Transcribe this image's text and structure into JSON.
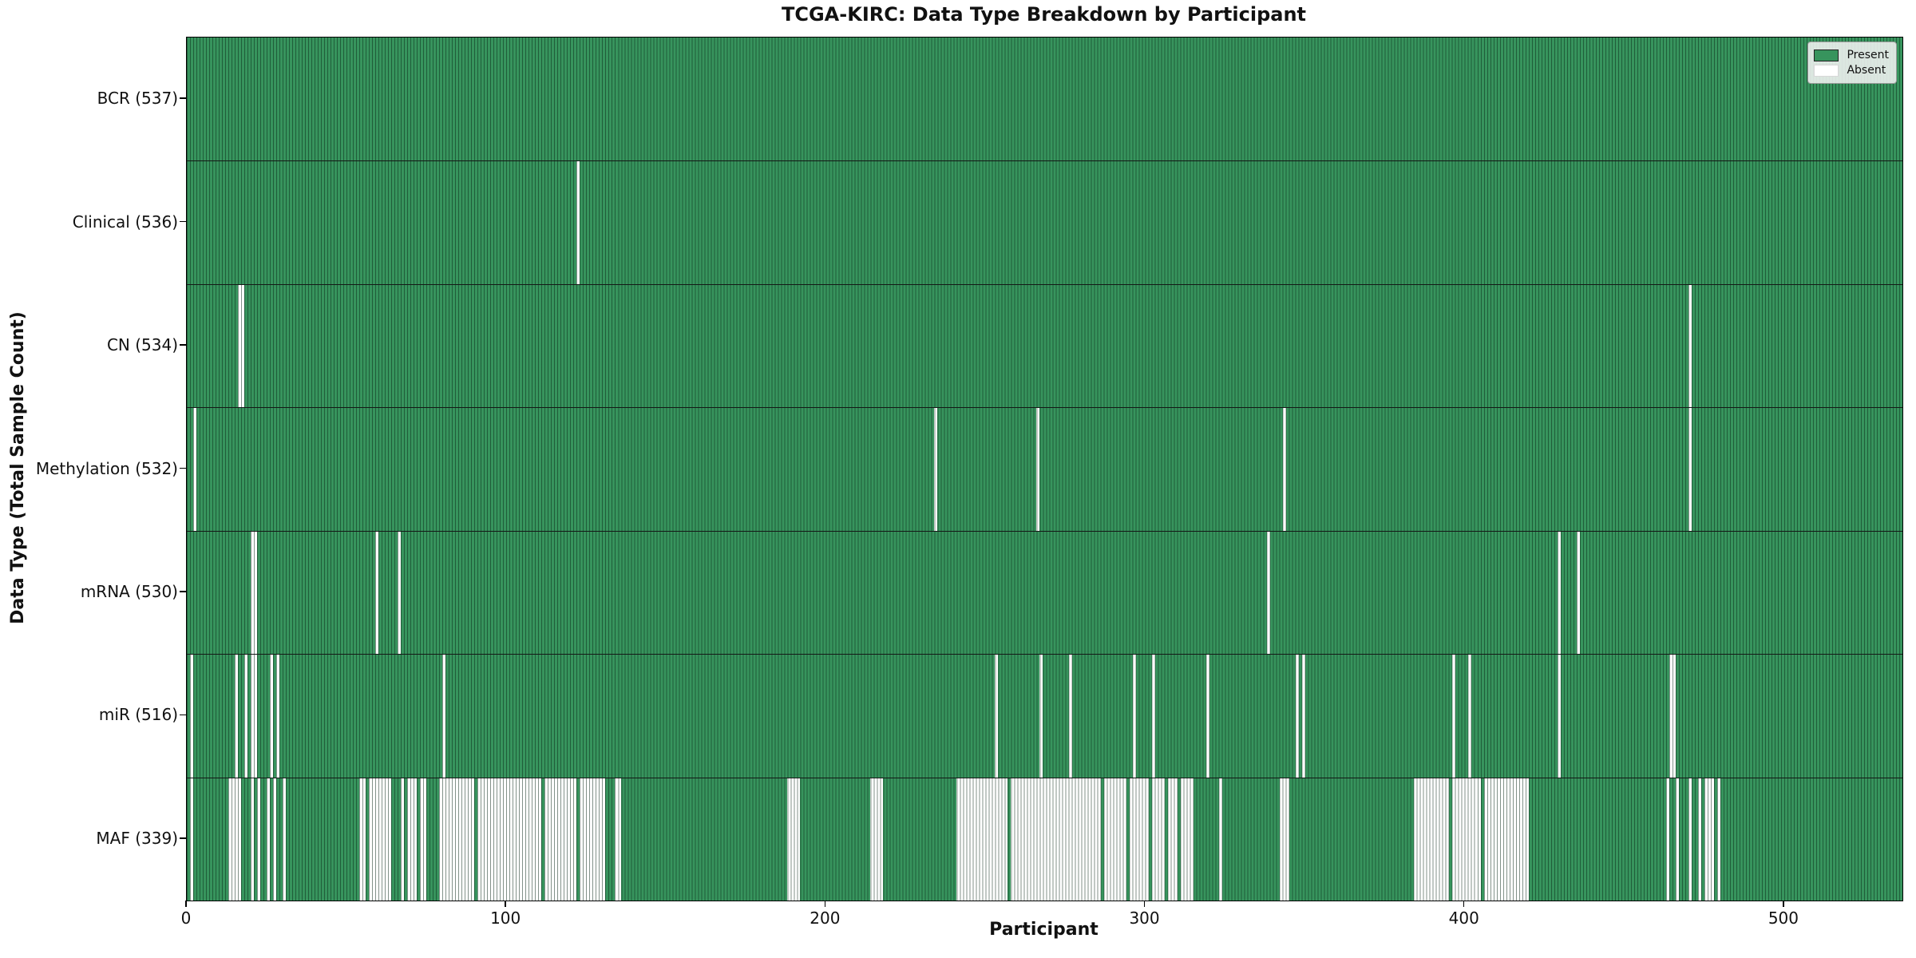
{
  "chart_data": {
    "type": "heatmap",
    "title": "TCGA-KIRC: Data Type Breakdown by Participant",
    "xlabel": "Participant",
    "ylabel": "Data Type (Total Sample Count)",
    "n_participants": 537,
    "x_ticks": [
      0,
      100,
      200,
      300,
      400,
      500
    ],
    "xlim": [
      0,
      537
    ],
    "grid": false,
    "legend_position": "upper right",
    "legend": [
      {
        "label": "Present",
        "color": "#37945d"
      },
      {
        "label": "Absent",
        "color": "#ffffff"
      }
    ],
    "colors": {
      "present": "#37945d",
      "absent": "#ffffff",
      "cell_edge": "rgba(8,38,22,0.5)",
      "row_separator": "#161616"
    },
    "rows": [
      {
        "label": "BCR (537)",
        "data_type": "BCR",
        "present_count": 537,
        "absent_count": 0,
        "absent_runs": []
      },
      {
        "label": "Clinical (536)",
        "data_type": "Clinical",
        "present_count": 536,
        "absent_count": 1,
        "absent_runs": [
          [
            122,
            122
          ]
        ]
      },
      {
        "label": "CN (534)",
        "data_type": "CN",
        "present_count": 534,
        "absent_count": 3,
        "absent_runs": [
          [
            16,
            17
          ],
          [
            470,
            470
          ]
        ]
      },
      {
        "label": "Methylation (532)",
        "data_type": "Methylation",
        "present_count": 532,
        "absent_count": 5,
        "absent_runs": [
          [
            2,
            2
          ],
          [
            234,
            234
          ],
          [
            266,
            266
          ],
          [
            343,
            343
          ],
          [
            470,
            470
          ]
        ]
      },
      {
        "label": "mRNA (530)",
        "data_type": "mRNA",
        "present_count": 530,
        "absent_count": 7,
        "absent_runs": [
          [
            20,
            21
          ],
          [
            59,
            59
          ],
          [
            66,
            66
          ],
          [
            338,
            338
          ],
          [
            429,
            429
          ],
          [
            435,
            435
          ]
        ]
      },
      {
        "label": "miR (516)",
        "data_type": "miR",
        "present_count": 516,
        "absent_count": 21,
        "absent_runs": [
          [
            1,
            1
          ],
          [
            15,
            15
          ],
          [
            18,
            18
          ],
          [
            20,
            21
          ],
          [
            26,
            26
          ],
          [
            28,
            28
          ],
          [
            80,
            80
          ],
          [
            253,
            253
          ],
          [
            267,
            267
          ],
          [
            276,
            276
          ],
          [
            296,
            296
          ],
          [
            302,
            302
          ],
          [
            319,
            319
          ],
          [
            347,
            347
          ],
          [
            349,
            349
          ],
          [
            396,
            396
          ],
          [
            401,
            401
          ],
          [
            429,
            429
          ],
          [
            464,
            465
          ]
        ]
      },
      {
        "label": "MAF (339)",
        "data_type": "MAF",
        "present_count": 339,
        "absent_count": 198,
        "absent_runs": [
          [
            1,
            1
          ],
          [
            13,
            16
          ],
          [
            20,
            20
          ],
          [
            22,
            22
          ],
          [
            25,
            25
          ],
          [
            27,
            27
          ],
          [
            30,
            30
          ],
          [
            54,
            55
          ],
          [
            57,
            63
          ],
          [
            67,
            67
          ],
          [
            69,
            71
          ],
          [
            73,
            74
          ],
          [
            79,
            89
          ],
          [
            91,
            110
          ],
          [
            112,
            121
          ],
          [
            123,
            130
          ],
          [
            134,
            135
          ],
          [
            188,
            191
          ],
          [
            214,
            217
          ],
          [
            241,
            256
          ],
          [
            258,
            285
          ],
          [
            287,
            293
          ],
          [
            295,
            300
          ],
          [
            302,
            305
          ],
          [
            307,
            309
          ],
          [
            311,
            314
          ],
          [
            323,
            323
          ],
          [
            342,
            344
          ],
          [
            384,
            394
          ],
          [
            396,
            404
          ],
          [
            406,
            419
          ],
          [
            463,
            463
          ],
          [
            466,
            466
          ],
          [
            470,
            470
          ],
          [
            473,
            473
          ],
          [
            475,
            477
          ],
          [
            479,
            479
          ]
        ]
      }
    ]
  }
}
